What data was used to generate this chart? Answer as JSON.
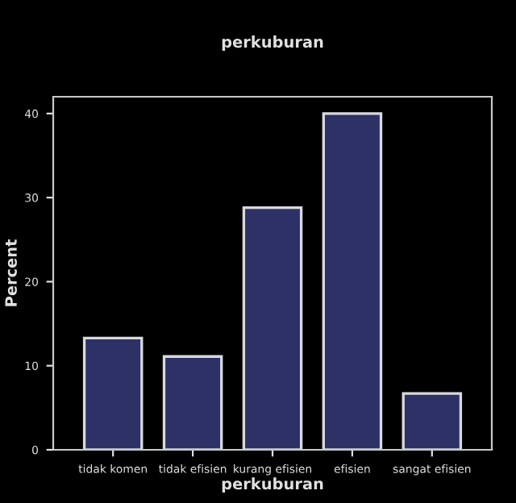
{
  "chart_data": {
    "type": "bar",
    "title": "perkuburan",
    "xlabel": "perkuburan",
    "ylabel": "Percent",
    "categories": [
      "tidak komen",
      "tidak efisien",
      "kurang efisien",
      "efisien",
      "sangat efisien"
    ],
    "values": [
      13.3,
      11.1,
      28.8,
      40,
      6.7
    ],
    "color": "#2e3166",
    "ylim": [
      0,
      42
    ],
    "yticks": [
      0,
      10,
      20,
      30,
      40
    ],
    "grid": false,
    "legend": false
  }
}
